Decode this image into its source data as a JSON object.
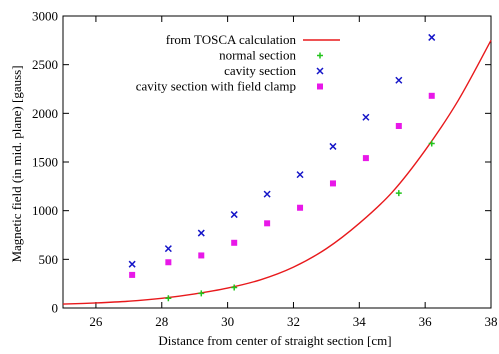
{
  "chart_data": {
    "type": "scatter",
    "title": "",
    "xlabel": "Distance from center of straight section [cm]",
    "ylabel": "Magnetic field (in mid. plane) [gauss]",
    "xlim": [
      25,
      38
    ],
    "ylim": [
      0,
      3000
    ],
    "x_ticks": [
      "26",
      "28",
      "30",
      "32",
      "34",
      "36",
      "38"
    ],
    "y_ticks": [
      "0",
      "500",
      "1000",
      "1500",
      "2000",
      "2500",
      "3000"
    ],
    "grid": false,
    "legend_position": "top-left",
    "series": [
      {
        "name": "from TOSCA calculation",
        "kind": "line",
        "color": "#e8191c",
        "x": [
          25,
          26,
          27,
          28,
          29,
          30,
          31,
          32,
          33,
          34,
          35,
          36,
          37,
          38
        ],
        "y": [
          40,
          52,
          70,
          100,
          145,
          205,
          290,
          420,
          610,
          870,
          1190,
          1620,
          2130,
          2750
        ]
      },
      {
        "name": "normal section",
        "kind": "points",
        "marker": "plus",
        "color": "#22c41c",
        "x": [
          28.2,
          29.2,
          30.2,
          35.2,
          36.2
        ],
        "y": [
          100,
          150,
          210,
          1180,
          1690
        ]
      },
      {
        "name": "cavity section",
        "kind": "points",
        "marker": "x",
        "color": "#1515c8",
        "x": [
          27.1,
          28.2,
          29.2,
          30.2,
          31.2,
          32.2,
          33.2,
          34.2,
          35.2,
          36.2
        ],
        "y": [
          450,
          610,
          770,
          960,
          1170,
          1370,
          1660,
          1960,
          2340,
          2780
        ]
      },
      {
        "name": "cavity section with field clamp",
        "kind": "points",
        "marker": "square",
        "color": "#e818e8",
        "x": [
          27.1,
          28.2,
          29.2,
          30.2,
          31.2,
          32.2,
          33.2,
          34.2,
          35.2,
          36.2
        ],
        "y": [
          340,
          470,
          540,
          670,
          870,
          1030,
          1280,
          1540,
          1870,
          2180
        ]
      }
    ]
  }
}
